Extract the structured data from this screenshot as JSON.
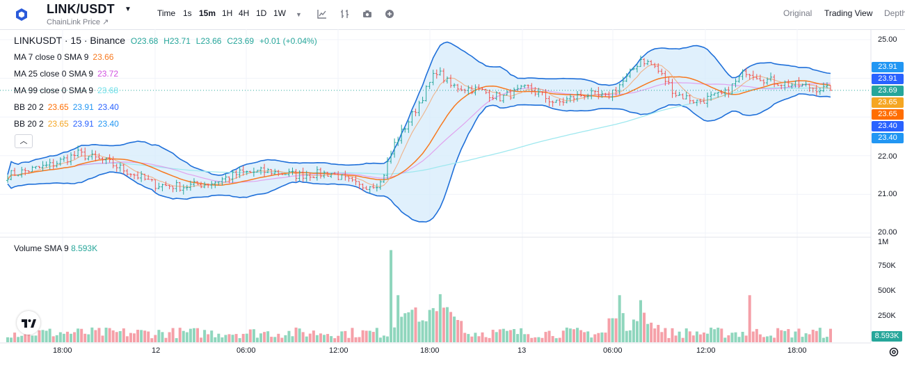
{
  "header": {
    "symbol": "LINK/USDT",
    "subtitle": "ChainLink Price ↗",
    "timeframes": [
      "Time",
      "1s",
      "15m",
      "1H",
      "4H",
      "1D",
      "1W"
    ],
    "active_timeframe": "15m",
    "views": [
      "Original",
      "Trading View",
      "Depth"
    ],
    "active_view": "Trading View"
  },
  "legend": {
    "title": "LINKUSDT · 15 · Binance",
    "o": "O23.68",
    "h": "H23.71",
    "l": "L23.66",
    "c": "C23.69",
    "change": "+0.01 (+0.04%)",
    "ma7_label": "MA 7 close 0 SMA 9",
    "ma7_value": "23.66",
    "ma25_label": "MA 25 close 0 SMA 9",
    "ma25_value": "23.72",
    "ma99_label": "MA 99 close 0 SMA 9",
    "ma99_value": "23.68",
    "bb1_label": "BB 20 2",
    "bb1_mid": "23.65",
    "bb1_up": "23.91",
    "bb1_low": "23.40",
    "bb2_label": "BB 20 2",
    "bb2_mid": "23.65",
    "bb2_up": "23.91",
    "bb2_low": "23.40"
  },
  "volume_legend": {
    "label": "Volume SMA 9",
    "value": "8.593K"
  },
  "price_labels": [
    {
      "text": "23.91",
      "color": "#2196f3"
    },
    {
      "text": "23.91",
      "color": "#2962ff"
    },
    {
      "text": "23.69",
      "color": "#26a69a"
    },
    {
      "text": "23.65",
      "color": "#f5a623"
    },
    {
      "text": "23.65",
      "color": "#ff6d00"
    },
    {
      "text": "23.40",
      "color": "#2962ff"
    },
    {
      "text": "23.40",
      "color": "#2196f3"
    }
  ],
  "volume_label": {
    "text": "8.593K",
    "color": "#26a69a"
  },
  "colors": {
    "up": "#26a69a",
    "down": "#ef5350",
    "vol_up": "#8fd6bd",
    "vol_down": "#f5a0a8",
    "ma7": "#f2a36b",
    "ma25": "#f7791f",
    "ma99": "#9ee8ef",
    "ma_pink": "#e080e8",
    "bb_line": "#1e6fd9",
    "bb_fill": "#d6ebfb"
  },
  "chart_data": {
    "type": "candlestick",
    "price_axis": {
      "ticks": [
        25.0,
        24.0,
        23.0,
        22.0,
        21.0,
        20.0
      ],
      "tick_labels": [
        "25.00",
        "22.00",
        "21.00",
        "20.00"
      ],
      "range": [
        19.8,
        25.2
      ]
    },
    "volume_axis": {
      "tick_labels": [
        "1M",
        "750K",
        "500K",
        "250K"
      ],
      "ticks": [
        1000000,
        750000,
        500000,
        250000
      ]
    },
    "time_axis": {
      "labels": [
        "18:00",
        "12",
        "06:00",
        "12:00",
        "18:00",
        "13",
        "06:00",
        "12:00",
        "18:00"
      ]
    },
    "close_anchors": [
      [
        0,
        21.5
      ],
      [
        12,
        21.75
      ],
      [
        20,
        22.05
      ],
      [
        28,
        21.85
      ],
      [
        34,
        21.6
      ],
      [
        42,
        21.25
      ],
      [
        50,
        21.2
      ],
      [
        58,
        21.3
      ],
      [
        66,
        21.55
      ],
      [
        74,
        21.6
      ],
      [
        82,
        21.5
      ],
      [
        92,
        21.55
      ],
      [
        100,
        21.2
      ],
      [
        106,
        21.3
      ],
      [
        110,
        22.3
      ],
      [
        116,
        23.2
      ],
      [
        122,
        24.2
      ],
      [
        126,
        23.8
      ],
      [
        134,
        23.7
      ],
      [
        140,
        23.5
      ],
      [
        148,
        23.75
      ],
      [
        156,
        23.35
      ],
      [
        164,
        23.6
      ],
      [
        170,
        23.5
      ],
      [
        176,
        24.0
      ],
      [
        180,
        24.5
      ],
      [
        184,
        24.3
      ],
      [
        190,
        23.6
      ],
      [
        196,
        23.4
      ],
      [
        204,
        23.6
      ],
      [
        210,
        24.2
      ],
      [
        216,
        23.95
      ],
      [
        222,
        23.85
      ],
      [
        234,
        23.7
      ]
    ],
    "volume_spikes": [
      [
        109,
        920000
      ],
      [
        111,
        470000
      ],
      [
        123,
        480000
      ],
      [
        174,
        470000
      ],
      [
        211,
        470000
      ],
      [
        180,
        420000
      ]
    ],
    "volume_sma": 8593,
    "candle_count": 235
  }
}
